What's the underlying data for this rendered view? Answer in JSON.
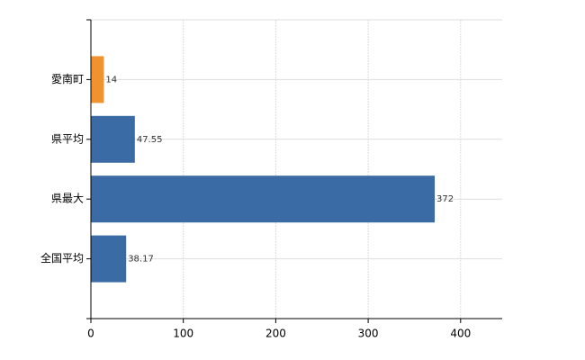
{
  "chart_data": {
    "type": "bar",
    "orientation": "horizontal",
    "categories": [
      "愛南町",
      "県平均",
      "県最大",
      "全国平均"
    ],
    "values": [
      14,
      47.55,
      372,
      38.17
    ],
    "colors": [
      "#f0922e",
      "#3a6ba5",
      "#3a6ba5",
      "#3a6ba5"
    ],
    "xlim": [
      0,
      445
    ],
    "xticks": [
      0,
      100,
      200,
      300,
      400
    ],
    "grid": true
  }
}
